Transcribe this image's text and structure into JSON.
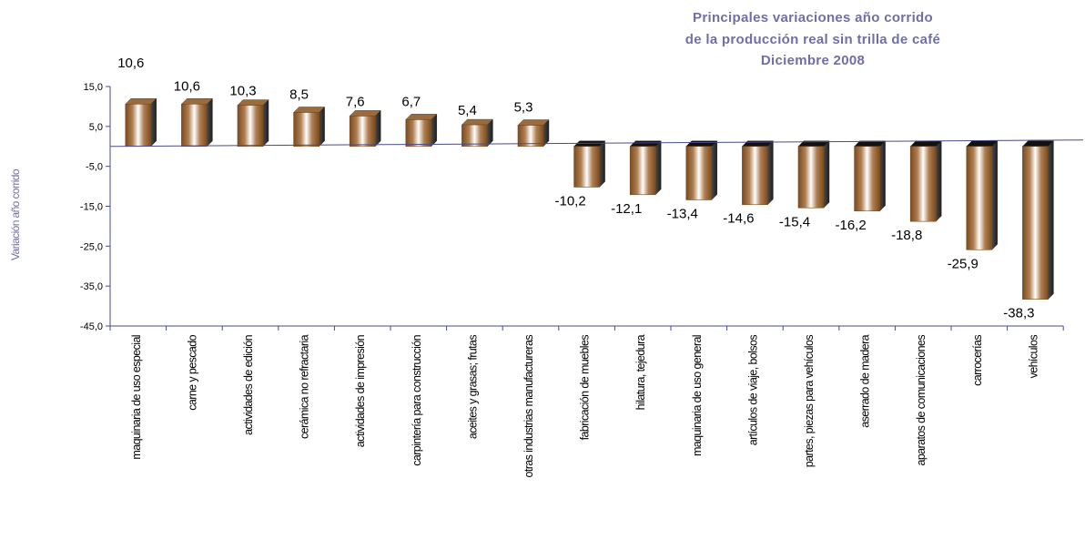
{
  "chart_data": {
    "type": "bar",
    "title_lines": [
      "Principales variaciones año corrido",
      "de la producción real sin trilla de café",
      "Diciembre 2008"
    ],
    "ylabel": "Variación año corrido",
    "xlabel": "",
    "ylim": [
      -45,
      15
    ],
    "y_ticks": [
      "15,0",
      "5,0",
      "-5,0",
      "-15,0",
      "-25,0",
      "-35,0",
      "-45,0"
    ],
    "categories": [
      "maquinaria de uso especial",
      "carne y pescado",
      "actividades de edición",
      "cerámica no refractaria",
      "actividades de impresión",
      "carpintería para construcción",
      "aceites y grasas; frutas",
      "otras industrias manufactureras",
      "fabricación de muebles",
      "hilatura, tejedura",
      "maquinaria de uso general",
      "artículos de viaje, bolsos",
      "partes, piezas para vehículos",
      "aserrado de madera",
      "aparatos de comunicaciones",
      "carrocerías",
      "vehículos"
    ],
    "values": [
      10.6,
      10.6,
      10.3,
      8.5,
      7.6,
      6.7,
      5.4,
      5.3,
      -10.2,
      -12.1,
      -13.4,
      -14.6,
      -15.4,
      -16.2,
      -18.8,
      -25.9,
      -38.3
    ],
    "value_labels": [
      "10,6",
      "10,6",
      "10,3",
      "8,5",
      "7,6",
      "6,7",
      "5,4",
      "5,3",
      "-10,2",
      "-12,1",
      "-13,4",
      "-14,6",
      "-15,4",
      "-16,2",
      "-18,8",
      "-25,9",
      "-38,3"
    ],
    "grid": false,
    "legend": "none",
    "colors": {
      "bar_edge": "#7a4b1e",
      "bar_mid": "#b07f52",
      "bar_highlight": "#ffffff",
      "axis": "#4a4a8a",
      "title": "#6f6fa8"
    }
  }
}
